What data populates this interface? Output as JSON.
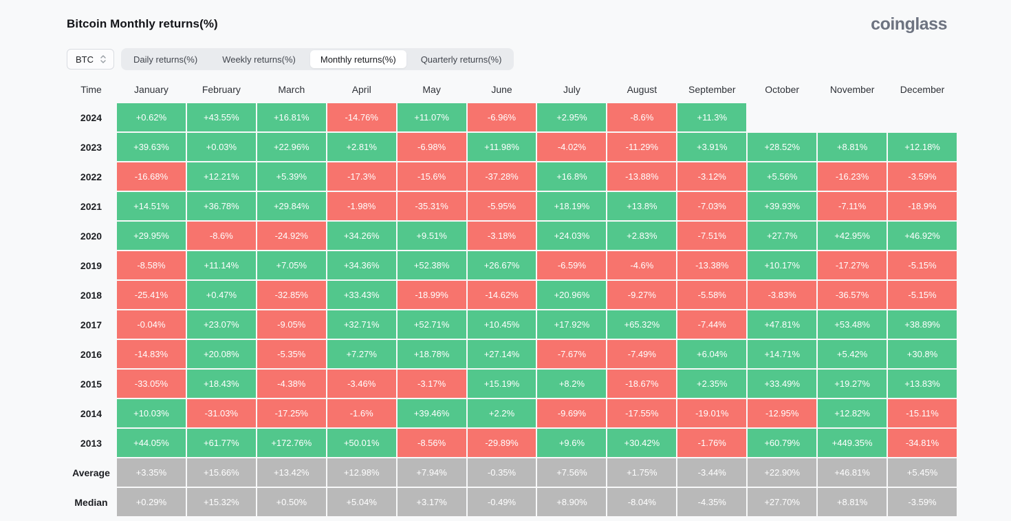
{
  "page": {
    "title": "Bitcoin Monthly returns(%)",
    "logo": "coinglass"
  },
  "controls": {
    "symbol_select": {
      "value": "BTC"
    },
    "tabs": [
      {
        "label": "Daily returns(%)",
        "active": false
      },
      {
        "label": "Weekly returns(%)",
        "active": false
      },
      {
        "label": "Monthly returns(%)",
        "active": true
      },
      {
        "label": "Quarterly returns(%)",
        "active": false
      }
    ]
  },
  "colors": {
    "positive": "#52c78c",
    "negative": "#f7746d",
    "summary": "#b9b9b9",
    "background": "#f8f9fa"
  },
  "chart_data": {
    "type": "heatmap",
    "title": "Bitcoin Monthly returns(%)",
    "corner_label": "Time",
    "x_categories": [
      "January",
      "February",
      "March",
      "April",
      "May",
      "June",
      "July",
      "August",
      "September",
      "October",
      "November",
      "December"
    ],
    "rows": [
      {
        "label": "2024",
        "summary": false,
        "values": [
          "+0.62%",
          "+43.55%",
          "+16.81%",
          "-14.76%",
          "+11.07%",
          "-6.96%",
          "+2.95%",
          "-8.6%",
          "+11.3%",
          "",
          "",
          ""
        ]
      },
      {
        "label": "2023",
        "summary": false,
        "values": [
          "+39.63%",
          "+0.03%",
          "+22.96%",
          "+2.81%",
          "-6.98%",
          "+11.98%",
          "-4.02%",
          "-11.29%",
          "+3.91%",
          "+28.52%",
          "+8.81%",
          "+12.18%"
        ]
      },
      {
        "label": "2022",
        "summary": false,
        "values": [
          "-16.68%",
          "+12.21%",
          "+5.39%",
          "-17.3%",
          "-15.6%",
          "-37.28%",
          "+16.8%",
          "-13.88%",
          "-3.12%",
          "+5.56%",
          "-16.23%",
          "-3.59%"
        ]
      },
      {
        "label": "2021",
        "summary": false,
        "values": [
          "+14.51%",
          "+36.78%",
          "+29.84%",
          "-1.98%",
          "-35.31%",
          "-5.95%",
          "+18.19%",
          "+13.8%",
          "-7.03%",
          "+39.93%",
          "-7.11%",
          "-18.9%"
        ]
      },
      {
        "label": "2020",
        "summary": false,
        "values": [
          "+29.95%",
          "-8.6%",
          "-24.92%",
          "+34.26%",
          "+9.51%",
          "-3.18%",
          "+24.03%",
          "+2.83%",
          "-7.51%",
          "+27.7%",
          "+42.95%",
          "+46.92%"
        ]
      },
      {
        "label": "2019",
        "summary": false,
        "values": [
          "-8.58%",
          "+11.14%",
          "+7.05%",
          "+34.36%",
          "+52.38%",
          "+26.67%",
          "-6.59%",
          "-4.6%",
          "-13.38%",
          "+10.17%",
          "-17.27%",
          "-5.15%"
        ]
      },
      {
        "label": "2018",
        "summary": false,
        "values": [
          "-25.41%",
          "+0.47%",
          "-32.85%",
          "+33.43%",
          "-18.99%",
          "-14.62%",
          "+20.96%",
          "-9.27%",
          "-5.58%",
          "-3.83%",
          "-36.57%",
          "-5.15%"
        ]
      },
      {
        "label": "2017",
        "summary": false,
        "values": [
          "-0.04%",
          "+23.07%",
          "-9.05%",
          "+32.71%",
          "+52.71%",
          "+10.45%",
          "+17.92%",
          "+65.32%",
          "-7.44%",
          "+47.81%",
          "+53.48%",
          "+38.89%"
        ]
      },
      {
        "label": "2016",
        "summary": false,
        "values": [
          "-14.83%",
          "+20.08%",
          "-5.35%",
          "+7.27%",
          "+18.78%",
          "+27.14%",
          "-7.67%",
          "-7.49%",
          "+6.04%",
          "+14.71%",
          "+5.42%",
          "+30.8%"
        ]
      },
      {
        "label": "2015",
        "summary": false,
        "values": [
          "-33.05%",
          "+18.43%",
          "-4.38%",
          "-3.46%",
          "-3.17%",
          "+15.19%",
          "+8.2%",
          "-18.67%",
          "+2.35%",
          "+33.49%",
          "+19.27%",
          "+13.83%"
        ]
      },
      {
        "label": "2014",
        "summary": false,
        "values": [
          "+10.03%",
          "-31.03%",
          "-17.25%",
          "-1.6%",
          "+39.46%",
          "+2.2%",
          "-9.69%",
          "-17.55%",
          "-19.01%",
          "-12.95%",
          "+12.82%",
          "-15.11%"
        ]
      },
      {
        "label": "2013",
        "summary": false,
        "values": [
          "+44.05%",
          "+61.77%",
          "+172.76%",
          "+50.01%",
          "-8.56%",
          "-29.89%",
          "+9.6%",
          "+30.42%",
          "-1.76%",
          "+60.79%",
          "+449.35%",
          "-34.81%"
        ]
      },
      {
        "label": "Average",
        "summary": true,
        "values": [
          "+3.35%",
          "+15.66%",
          "+13.42%",
          "+12.98%",
          "+7.94%",
          "-0.35%",
          "+7.56%",
          "+1.75%",
          "-3.44%",
          "+22.90%",
          "+46.81%",
          "+5.45%"
        ]
      },
      {
        "label": "Median",
        "summary": true,
        "values": [
          "+0.29%",
          "+15.32%",
          "+0.50%",
          "+5.04%",
          "+3.17%",
          "-0.49%",
          "+8.90%",
          "-8.04%",
          "-4.35%",
          "+27.70%",
          "+8.81%",
          "-3.59%"
        ]
      }
    ]
  }
}
